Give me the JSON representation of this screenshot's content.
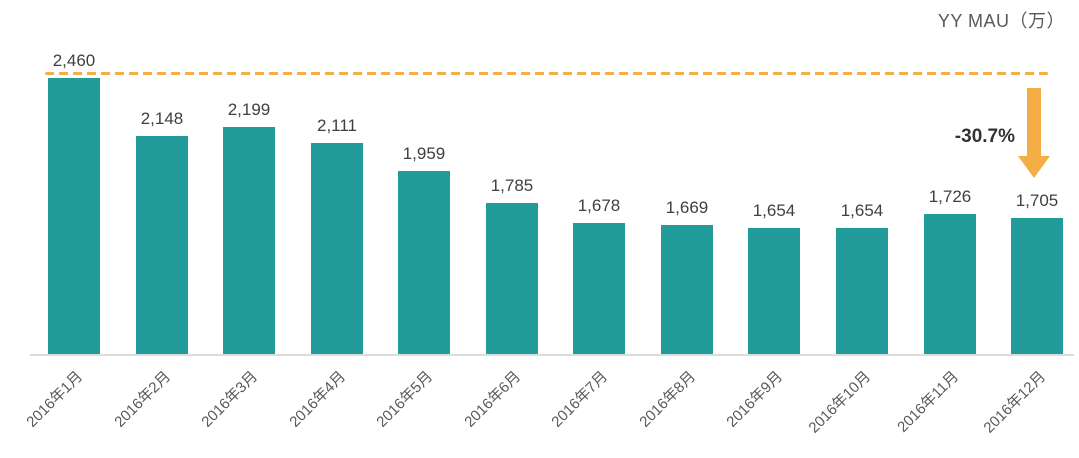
{
  "chart_data": {
    "type": "bar",
    "title": "YY MAU（万）",
    "categories": [
      "2016年1月",
      "2016年2月",
      "2016年3月",
      "2016年4月",
      "2016年5月",
      "2016年6月",
      "2016年7月",
      "2016年8月",
      "2016年9月",
      "2016年10月",
      "2016年11月",
      "2016年12月"
    ],
    "values": [
      2460,
      2148,
      2199,
      2111,
      1959,
      1785,
      1678,
      1669,
      1654,
      1654,
      1726,
      1705
    ],
    "value_labels": [
      "2,460",
      "2,148",
      "2,199",
      "2,111",
      "1,959",
      "1,785",
      "1,678",
      "1,669",
      "1,654",
      "1,654",
      "1,726",
      "1,705"
    ],
    "annotation": {
      "text": "-30.7%"
    },
    "reference_line": {
      "value": 2460,
      "style": "dashed"
    },
    "colors": {
      "bar": "#229b9b",
      "accent": "#f5ae45",
      "axis_line": "#dcdcdc",
      "value_label": "#404040",
      "axis_label": "#595959",
      "title": "#595959"
    },
    "xlabel": "",
    "ylabel": "",
    "ylim": [
      975,
      2460
    ],
    "grid": false,
    "legend": false
  }
}
